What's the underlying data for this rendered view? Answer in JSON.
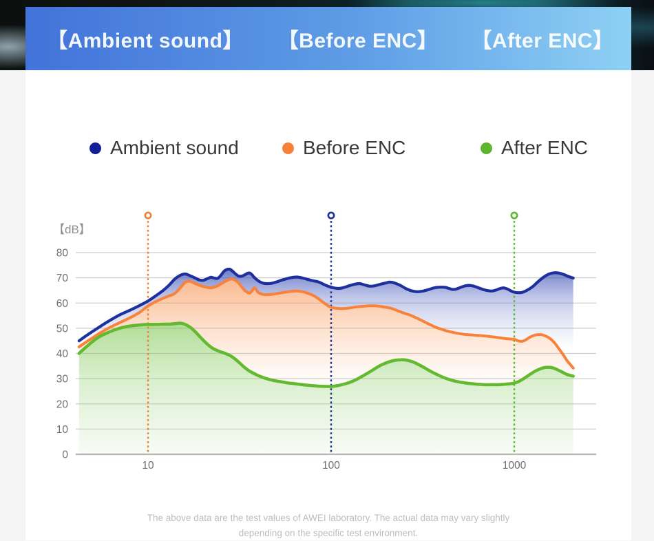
{
  "banner": {
    "titles": [
      "【Ambient sound】",
      "【Before ENC】",
      "【After ENC】"
    ]
  },
  "legend": {
    "items": [
      {
        "label": "Ambient sound",
        "color": "#131f99"
      },
      {
        "label": "Before ENC",
        "color": "#f8813a"
      },
      {
        "label": "After ENC",
        "color": "#5db52d"
      }
    ]
  },
  "chart_data": {
    "type": "area",
    "x_scale": "log",
    "unit_label": "【dB】",
    "ylim": [
      0,
      80
    ],
    "xlim": [
      4.2,
      2100
    ],
    "y_ticks": [
      0,
      10,
      20,
      30,
      40,
      50,
      60,
      70,
      80
    ],
    "x_ticks": [
      10,
      100,
      1000
    ],
    "grid": true,
    "legend_position": "top",
    "marker_lines": [
      {
        "x": 10,
        "color": "#ef8132"
      },
      {
        "x": 100,
        "color": "#1d2f9b"
      },
      {
        "x": 1000,
        "color": "#5cb832"
      }
    ],
    "series": [
      {
        "name": "Ambient sound",
        "color": "#1e2f9e",
        "stroke_width": 4.2,
        "points": [
          [
            4.2,
            45
          ],
          [
            4.7,
            47.5
          ],
          [
            5.3,
            50
          ],
          [
            6,
            52.5
          ],
          [
            7,
            55.3
          ],
          [
            8,
            57.2
          ],
          [
            9,
            59
          ],
          [
            10,
            60.8
          ],
          [
            11,
            62.8
          ],
          [
            12,
            64.8
          ],
          [
            13,
            67
          ],
          [
            14,
            69.5
          ],
          [
            15,
            71
          ],
          [
            16,
            71.5
          ],
          [
            17,
            70.8
          ],
          [
            18,
            70
          ],
          [
            19,
            69.2
          ],
          [
            20,
            69
          ],
          [
            21,
            69.6
          ],
          [
            22,
            70.2
          ],
          [
            23,
            69.9
          ],
          [
            24,
            69.8
          ],
          [
            25,
            71
          ],
          [
            26,
            72.6
          ],
          [
            27,
            73.3
          ],
          [
            28,
            73.4
          ],
          [
            29,
            72.6
          ],
          [
            30,
            71.6
          ],
          [
            31,
            70.8
          ],
          [
            32,
            70.6
          ],
          [
            33,
            70.8
          ],
          [
            34,
            71.3
          ],
          [
            35,
            71.8
          ],
          [
            36,
            71.9
          ],
          [
            37,
            71.2
          ],
          [
            38,
            70.2
          ],
          [
            40,
            68.8
          ],
          [
            42,
            68
          ],
          [
            44,
            67.7
          ],
          [
            47,
            67.8
          ],
          [
            50,
            68.3
          ],
          [
            55,
            69.3
          ],
          [
            60,
            70
          ],
          [
            65,
            70.3
          ],
          [
            70,
            69.9
          ],
          [
            75,
            69.3
          ],
          [
            80,
            68.8
          ],
          [
            85,
            68.4
          ],
          [
            90,
            67.6
          ],
          [
            95,
            66.8
          ],
          [
            100,
            66.3
          ],
          [
            105,
            65.9
          ],
          [
            110,
            65.8
          ],
          [
            115,
            66
          ],
          [
            125,
            66.8
          ],
          [
            135,
            67.5
          ],
          [
            143,
            67.7
          ],
          [
            152,
            67.2
          ],
          [
            162,
            66.7
          ],
          [
            172,
            66.8
          ],
          [
            185,
            67.4
          ],
          [
            200,
            68
          ],
          [
            210,
            68.3
          ],
          [
            225,
            67.8
          ],
          [
            240,
            66.9
          ],
          [
            255,
            65.8
          ],
          [
            270,
            65
          ],
          [
            285,
            64.6
          ],
          [
            300,
            64.5
          ],
          [
            320,
            64.8
          ],
          [
            340,
            65.3
          ],
          [
            360,
            65.9
          ],
          [
            380,
            66.2
          ],
          [
            400,
            66.3
          ],
          [
            420,
            66.2
          ],
          [
            440,
            65.8
          ],
          [
            460,
            65.4
          ],
          [
            480,
            65.5
          ],
          [
            510,
            66.2
          ],
          [
            540,
            66.8
          ],
          [
            570,
            67
          ],
          [
            600,
            66.7
          ],
          [
            640,
            66
          ],
          [
            680,
            65.3
          ],
          [
            720,
            64.9
          ],
          [
            760,
            64.8
          ],
          [
            800,
            65.2
          ],
          [
            840,
            65.8
          ],
          [
            880,
            66
          ],
          [
            920,
            65.5
          ],
          [
            960,
            64.8
          ],
          [
            1000,
            64.3
          ],
          [
            1050,
            64.1
          ],
          [
            1100,
            64.2
          ],
          [
            1150,
            64.7
          ],
          [
            1250,
            66.3
          ],
          [
            1350,
            68.5
          ],
          [
            1450,
            70.3
          ],
          [
            1550,
            71.5
          ],
          [
            1650,
            72
          ],
          [
            1750,
            71.9
          ],
          [
            1850,
            71.4
          ],
          [
            1950,
            70.7
          ],
          [
            2100,
            69.9
          ]
        ]
      },
      {
        "name": "Before ENC",
        "color": "#f8823c",
        "stroke_width": 4,
        "points": [
          [
            4.2,
            42.6
          ],
          [
            4.7,
            45
          ],
          [
            5.3,
            47.5
          ],
          [
            6,
            49.8
          ],
          [
            7,
            52.2
          ],
          [
            8,
            54.2
          ],
          [
            9,
            56.3
          ],
          [
            10,
            58.8
          ],
          [
            11,
            60.5
          ],
          [
            12,
            61.8
          ],
          [
            13,
            62.8
          ],
          [
            14,
            63.8
          ],
          [
            15,
            66
          ],
          [
            16,
            68.3
          ],
          [
            17,
            68.6
          ],
          [
            18,
            67.8
          ],
          [
            19,
            67.1
          ],
          [
            20,
            66.6
          ],
          [
            21,
            66.2
          ],
          [
            22,
            66
          ],
          [
            23,
            66.3
          ],
          [
            24,
            66.8
          ],
          [
            26,
            68.3
          ],
          [
            28,
            69.4
          ],
          [
            29,
            69.5
          ],
          [
            30,
            69
          ],
          [
            31,
            68.2
          ],
          [
            32,
            67
          ],
          [
            33,
            65.8
          ],
          [
            34,
            64.8
          ],
          [
            35,
            64.2
          ],
          [
            36,
            64
          ],
          [
            37,
            64.8
          ],
          [
            38,
            66
          ],
          [
            39,
            65.3
          ],
          [
            40,
            64.2
          ],
          [
            42,
            63.5
          ],
          [
            44,
            63.3
          ],
          [
            47,
            63.4
          ],
          [
            50,
            63.7
          ],
          [
            55,
            64.2
          ],
          [
            60,
            64.6
          ],
          [
            65,
            64.8
          ],
          [
            70,
            64.5
          ],
          [
            75,
            63.8
          ],
          [
            80,
            63
          ],
          [
            85,
            61.8
          ],
          [
            90,
            60.4
          ],
          [
            95,
            59.2
          ],
          [
            100,
            58.3
          ],
          [
            107,
            57.9
          ],
          [
            115,
            57.8
          ],
          [
            125,
            58
          ],
          [
            135,
            58.4
          ],
          [
            150,
            58.7
          ],
          [
            165,
            58.9
          ],
          [
            180,
            58.8
          ],
          [
            195,
            58.4
          ],
          [
            210,
            58
          ],
          [
            230,
            57
          ],
          [
            250,
            56
          ],
          [
            270,
            55.2
          ],
          [
            290,
            54.2
          ],
          [
            310,
            53.2
          ],
          [
            330,
            52.2
          ],
          [
            350,
            51.3
          ],
          [
            375,
            50.3
          ],
          [
            400,
            49.6
          ],
          [
            430,
            48.9
          ],
          [
            460,
            48.4
          ],
          [
            490,
            48
          ],
          [
            530,
            47.6
          ],
          [
            570,
            47.4
          ],
          [
            620,
            47.2
          ],
          [
            680,
            47
          ],
          [
            740,
            46.7
          ],
          [
            800,
            46.4
          ],
          [
            860,
            46.1
          ],
          [
            920,
            45.8
          ],
          [
            1000,
            45.6
          ],
          [
            1050,
            45
          ],
          [
            1100,
            44.8
          ],
          [
            1150,
            45.3
          ],
          [
            1220,
            46.5
          ],
          [
            1300,
            47.3
          ],
          [
            1380,
            47.5
          ],
          [
            1450,
            47.2
          ],
          [
            1550,
            46.2
          ],
          [
            1650,
            44.4
          ],
          [
            1750,
            42
          ],
          [
            1850,
            39.5
          ],
          [
            1950,
            37
          ],
          [
            2100,
            34.2
          ]
        ]
      },
      {
        "name": "After ENC",
        "color": "#63b92f",
        "stroke_width": 4.5,
        "points": [
          [
            4.2,
            40
          ],
          [
            4.7,
            43.2
          ],
          [
            5.3,
            46.2
          ],
          [
            6,
            48.2
          ],
          [
            7,
            50
          ],
          [
            8,
            50.9
          ],
          [
            9,
            51.3
          ],
          [
            10,
            51.5
          ],
          [
            11,
            51.5
          ],
          [
            12,
            51.6
          ],
          [
            13,
            51.6
          ],
          [
            14,
            51.8
          ],
          [
            15,
            52
          ],
          [
            16,
            51.5
          ],
          [
            17,
            50.4
          ],
          [
            18,
            48.8
          ],
          [
            19,
            47
          ],
          [
            20,
            45.3
          ],
          [
            21,
            43.8
          ],
          [
            22,
            42.6
          ],
          [
            23,
            41.7
          ],
          [
            24,
            41.1
          ],
          [
            25,
            40.6
          ],
          [
            26,
            40.2
          ],
          [
            27,
            39.7
          ],
          [
            28,
            39.2
          ],
          [
            29,
            38.5
          ],
          [
            30,
            37.7
          ],
          [
            31,
            36.8
          ],
          [
            32,
            35.9
          ],
          [
            33,
            35
          ],
          [
            34,
            34.2
          ],
          [
            35,
            33.5
          ],
          [
            36,
            32.9
          ],
          [
            38,
            32
          ],
          [
            40,
            31.2
          ],
          [
            42,
            30.6
          ],
          [
            44,
            30.1
          ],
          [
            47,
            29.5
          ],
          [
            50,
            29.1
          ],
          [
            54,
            28.7
          ],
          [
            58,
            28.3
          ],
          [
            63,
            28
          ],
          [
            68,
            27.7
          ],
          [
            74,
            27.4
          ],
          [
            80,
            27.2
          ],
          [
            87,
            27
          ],
          [
            95,
            26.9
          ],
          [
            100,
            26.9
          ],
          [
            108,
            27.2
          ],
          [
            116,
            27.7
          ],
          [
            125,
            28.4
          ],
          [
            135,
            29.4
          ],
          [
            145,
            30.6
          ],
          [
            155,
            31.8
          ],
          [
            168,
            33.3
          ],
          [
            182,
            34.9
          ],
          [
            196,
            36
          ],
          [
            210,
            36.8
          ],
          [
            225,
            37.3
          ],
          [
            240,
            37.5
          ],
          [
            255,
            37.4
          ],
          [
            270,
            37
          ],
          [
            285,
            36.4
          ],
          [
            300,
            35.6
          ],
          [
            320,
            34.5
          ],
          [
            340,
            33.4
          ],
          [
            360,
            32.4
          ],
          [
            385,
            31.4
          ],
          [
            410,
            30.5
          ],
          [
            440,
            29.7
          ],
          [
            470,
            29.1
          ],
          [
            500,
            28.7
          ],
          [
            540,
            28.3
          ],
          [
            580,
            28
          ],
          [
            630,
            27.8
          ],
          [
            690,
            27.6
          ],
          [
            750,
            27.6
          ],
          [
            820,
            27.6
          ],
          [
            890,
            27.8
          ],
          [
            960,
            28
          ],
          [
            1000,
            28.2
          ],
          [
            1060,
            28.9
          ],
          [
            1120,
            29.9
          ],
          [
            1180,
            31
          ],
          [
            1250,
            32.2
          ],
          [
            1320,
            33.2
          ],
          [
            1390,
            33.9
          ],
          [
            1460,
            34.4
          ],
          [
            1530,
            34.5
          ],
          [
            1600,
            34.4
          ],
          [
            1680,
            33.9
          ],
          [
            1760,
            33.2
          ],
          [
            1850,
            32.4
          ],
          [
            1950,
            31.6
          ],
          [
            2100,
            31
          ]
        ]
      }
    ]
  },
  "footer": {
    "line1": "The above data are the test values of AWEI laboratory. The actual data may vary slightly",
    "line2": "depending on the specific test environment."
  }
}
